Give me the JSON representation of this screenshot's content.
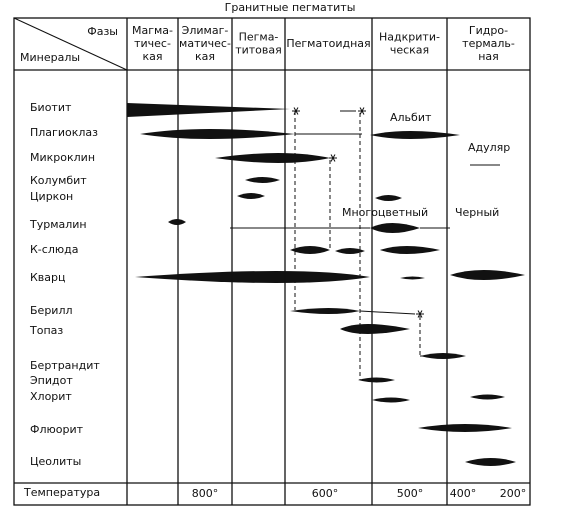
{
  "title": "Гранитные пегматиты",
  "header": {
    "phases_label": "Фазы",
    "minerals_label": "Минералы",
    "columns": [
      [
        "Магма-",
        "тичес-",
        "кая"
      ],
      [
        "Элимаг-",
        "матичес-",
        "кая"
      ],
      [
        "Пегма-",
        "титовая"
      ],
      [
        "Пегматоидная"
      ],
      [
        "Надкрити-",
        "ческая"
      ],
      [
        "Гидро-",
        "термаль-",
        "ная"
      ]
    ]
  },
  "minerals": [
    "Биотит",
    "Плагиоклаз",
    "Микроклин",
    "Колумбит",
    "Циркон",
    "Турмалин",
    "К-слюда",
    "Кварц",
    "Берилл",
    "Топаз",
    "Бертрандит",
    "Эпидот",
    "Хлорит",
    "Флюорит",
    "Цеолиты"
  ],
  "annotations": [
    "Альбит",
    "Адуляр",
    "Многоцветный",
    "Черный"
  ],
  "footer": {
    "label": "Температура",
    "temperatures": [
      "800°",
      "600°",
      "500°",
      "400°",
      "200°"
    ]
  }
}
